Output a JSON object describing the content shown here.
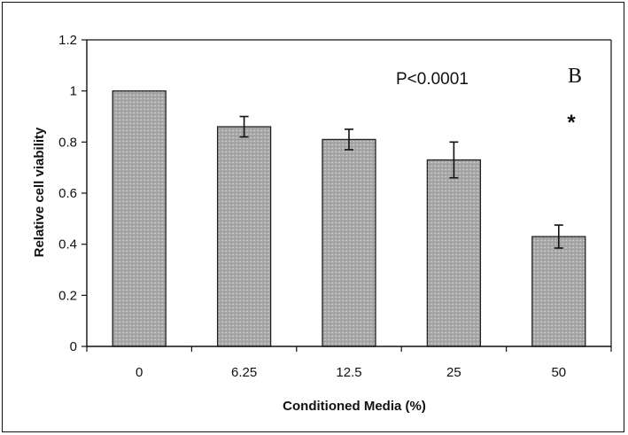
{
  "chart_data": {
    "type": "bar",
    "title": "",
    "xlabel": "Conditioned Media (%)",
    "ylabel": "Relative cell viability",
    "categories": [
      "0",
      "6.25",
      "12.5",
      "25",
      "50"
    ],
    "values": [
      1.0,
      0.86,
      0.81,
      0.73,
      0.43
    ],
    "errors": [
      0.0,
      0.04,
      0.04,
      0.07,
      0.045
    ],
    "ylim": [
      0,
      1.2
    ],
    "yticks": [
      "0",
      "0.2",
      "0.4",
      "0.6",
      "0.8",
      "1",
      "1.2"
    ],
    "grid": false,
    "legend": "none",
    "bar_color": "#a8a8a8",
    "annotations": {
      "pvalue": "P<0.0001",
      "panel_label": "B",
      "significance_marker": "*"
    }
  }
}
